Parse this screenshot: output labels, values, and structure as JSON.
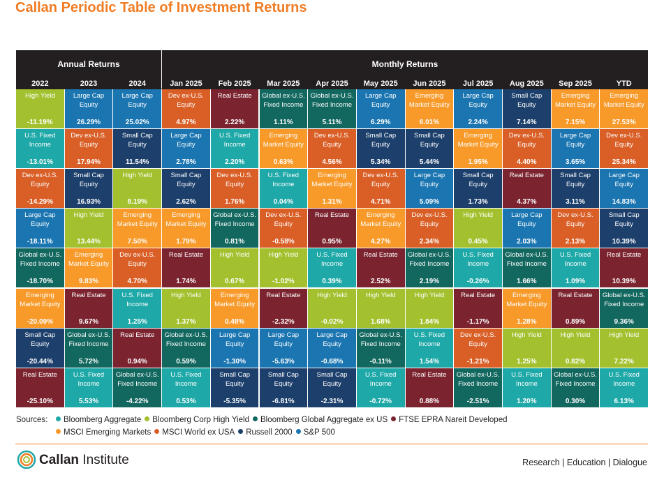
{
  "title": "Callan Periodic Table of Investment Returns",
  "header": {
    "annual": "Annual Returns",
    "monthly": "Monthly Returns"
  },
  "colors": {
    "aggregate": "#1fa8a8",
    "high_yield": "#a3c12e",
    "global_agg": "#12675f",
    "real_estate": "#7b2430",
    "em": "#f79a2a",
    "dev": "#d95f27",
    "small_cap": "#1c3f6b",
    "large_cap": "#1a75b1"
  },
  "chart_data": {
    "type": "table",
    "columns": [
      "2022",
      "2023",
      "2024",
      "Jan 2025",
      "Feb 2025",
      "Mar 2025",
      "Apr 2025",
      "May 2025",
      "Jun 2025",
      "Jul 2025",
      "Aug 2025",
      "Sep 2025",
      "YTD"
    ],
    "cells": [
      [
        [
          "High Yield",
          "-11.19%",
          "high_yield"
        ],
        [
          "Large Cap Equity",
          "26.29%",
          "large_cap"
        ],
        [
          "Large Cap Equity",
          "25.02%",
          "large_cap"
        ],
        [
          "Dev ex-U.S. Equity",
          "4.97%",
          "dev"
        ],
        [
          "Real Estate",
          "2.22%",
          "real_estate"
        ],
        [
          "Global ex-U.S. Fixed Income",
          "1.11%",
          "global_agg"
        ],
        [
          "Global ex-U.S. Fixed Income",
          "5.11%",
          "global_agg"
        ],
        [
          "Large Cap Equity",
          "6.29%",
          "large_cap"
        ],
        [
          "Emerging Market Equity",
          "6.01%",
          "em"
        ],
        [
          "Large Cap Equity",
          "2.24%",
          "large_cap"
        ],
        [
          "Small Cap Equity",
          "7.14%",
          "small_cap"
        ],
        [
          "Emerging Market Equity",
          "7.15%",
          "em"
        ],
        [
          "Emerging Market Equity",
          "27.53%",
          "em"
        ]
      ],
      [
        [
          "U.S. Fixed Income",
          "-13.01%",
          "aggregate"
        ],
        [
          "Dev ex-U.S. Equity",
          "17.94%",
          "dev"
        ],
        [
          "Small Cap Equity",
          "11.54%",
          "small_cap"
        ],
        [
          "Large Cap Equity",
          "2.78%",
          "large_cap"
        ],
        [
          "U.S. Fixed Income",
          "2.20%",
          "aggregate"
        ],
        [
          "Emerging Market Equity",
          "0.63%",
          "em"
        ],
        [
          "Dev ex-U.S. Equity",
          "4.56%",
          "dev"
        ],
        [
          "Small Cap Equity",
          "5.34%",
          "small_cap"
        ],
        [
          "Small Cap Equity",
          "5.44%",
          "small_cap"
        ],
        [
          "Emerging Market Equity",
          "1.95%",
          "em"
        ],
        [
          "Dev ex-U.S. Equity",
          "4.40%",
          "dev"
        ],
        [
          "Large Cap Equity",
          "3.65%",
          "large_cap"
        ],
        [
          "Dev ex-U.S. Equity",
          "25.34%",
          "dev"
        ]
      ],
      [
        [
          "Dev ex-U.S. Equity",
          "-14.29%",
          "dev"
        ],
        [
          "Small Cap Equity",
          "16.93%",
          "small_cap"
        ],
        [
          "High Yield",
          "8.19%",
          "high_yield"
        ],
        [
          "Small Cap Equity",
          "2.62%",
          "small_cap"
        ],
        [
          "Dev ex-U.S. Equity",
          "1.76%",
          "dev"
        ],
        [
          "U.S. Fixed Income",
          "0.04%",
          "aggregate"
        ],
        [
          "Emerging Market Equity",
          "1.31%",
          "em"
        ],
        [
          "Dev ex-U.S. Equity",
          "4.71%",
          "dev"
        ],
        [
          "Large Cap Equity",
          "5.09%",
          "large_cap"
        ],
        [
          "Small Cap Equity",
          "1.73%",
          "small_cap"
        ],
        [
          "Real Estate",
          "4.37%",
          "real_estate"
        ],
        [
          "Small Cap Equity",
          "3.11%",
          "small_cap"
        ],
        [
          "Large Cap Equity",
          "14.83%",
          "large_cap"
        ]
      ],
      [
        [
          "Large Cap Equity",
          "-18.11%",
          "large_cap"
        ],
        [
          "High Yield",
          "13.44%",
          "high_yield"
        ],
        [
          "Emerging Market Equity",
          "7.50%",
          "em"
        ],
        [
          "Emerging Market Equity",
          "1.79%",
          "em"
        ],
        [
          "Global ex-U.S. Fixed Income",
          "0.81%",
          "global_agg"
        ],
        [
          "Dev ex-U.S. Equity",
          "-0.58%",
          "dev"
        ],
        [
          "Real Estate",
          "0.95%",
          "real_estate"
        ],
        [
          "Emerging Market Equity",
          "4.27%",
          "em"
        ],
        [
          "Dev ex-U.S. Equity",
          "2.34%",
          "dev"
        ],
        [
          "High Yield",
          "0.45%",
          "high_yield"
        ],
        [
          "Large Cap Equity",
          "2.03%",
          "large_cap"
        ],
        [
          "Dev ex-U.S. Equity",
          "2.13%",
          "dev"
        ],
        [
          "Small Cap Equity",
          "10.39%",
          "small_cap"
        ]
      ],
      [
        [
          "Global ex-U.S. Fixed Income",
          "-18.70%",
          "global_agg"
        ],
        [
          "Emerging Market Equity",
          "9.83%",
          "em"
        ],
        [
          "Dev ex-U.S. Equity",
          "4.70%",
          "dev"
        ],
        [
          "Real Estate",
          "1.74%",
          "real_estate"
        ],
        [
          "High Yield",
          "0.67%",
          "high_yield"
        ],
        [
          "High Yield",
          "-1.02%",
          "high_yield"
        ],
        [
          "U.S. Fixed Income",
          "0.39%",
          "aggregate"
        ],
        [
          "Real Estate",
          "2.52%",
          "real_estate"
        ],
        [
          "Global ex-U.S. Fixed Income",
          "2.19%",
          "global_agg"
        ],
        [
          "U.S. Fixed Income",
          "-0.26%",
          "aggregate"
        ],
        [
          "Global ex-U.S. Fixed Income",
          "1.66%",
          "global_agg"
        ],
        [
          "U.S. Fixed Income",
          "1.09%",
          "aggregate"
        ],
        [
          "Real Estate",
          "10.39%",
          "real_estate"
        ]
      ],
      [
        [
          "Emerging Market Equity",
          "-20.09%",
          "em"
        ],
        [
          "Real Estate",
          "9.67%",
          "real_estate"
        ],
        [
          "U.S. Fixed Income",
          "1.25%",
          "aggregate"
        ],
        [
          "High Yield",
          "1.37%",
          "high_yield"
        ],
        [
          "Emerging Market Equity",
          "0.48%",
          "em"
        ],
        [
          "Real Estate",
          "-2.32%",
          "real_estate"
        ],
        [
          "High Yield",
          "-0.02%",
          "high_yield"
        ],
        [
          "High Yield",
          "1.68%",
          "high_yield"
        ],
        [
          "High Yield",
          "1.84%",
          "high_yield"
        ],
        [
          "Real Estate",
          "-1.17%",
          "real_estate"
        ],
        [
          "Emerging Market Equity",
          "1.28%",
          "em"
        ],
        [
          "Real Estate",
          "0.89%",
          "real_estate"
        ],
        [
          "Global ex-U.S. Fixed Income",
          "9.36%",
          "global_agg"
        ]
      ],
      [
        [
          "Small Cap Equity",
          "-20.44%",
          "small_cap"
        ],
        [
          "Global ex-U.S. Fixed Income",
          "5.72%",
          "global_agg"
        ],
        [
          "Real Estate",
          "0.94%",
          "real_estate"
        ],
        [
          "Global ex-U.S. Fixed Income",
          "0.59%",
          "global_agg"
        ],
        [
          "Large Cap Equity",
          "-1.30%",
          "large_cap"
        ],
        [
          "Large Cap Equity",
          "-5.63%",
          "large_cap"
        ],
        [
          "Large Cap Equity",
          "-0.68%",
          "large_cap"
        ],
        [
          "Global ex-U.S. Fixed Income",
          "-0.11%",
          "global_agg"
        ],
        [
          "U.S. Fixed Income",
          "1.54%",
          "aggregate"
        ],
        [
          "Dev ex-U.S. Equity",
          "-1.21%",
          "dev"
        ],
        [
          "High Yield",
          "1.25%",
          "high_yield"
        ],
        [
          "High Yield",
          "0.82%",
          "high_yield"
        ],
        [
          "High Yield",
          "7.22%",
          "high_yield"
        ]
      ],
      [
        [
          "Real Estate",
          "-25.10%",
          "real_estate"
        ],
        [
          "U.S. Fixed Income",
          "5.53%",
          "aggregate"
        ],
        [
          "Global ex-U.S. Fixed Income",
          "-4.22%",
          "global_agg"
        ],
        [
          "U.S. Fixed Income",
          "0.53%",
          "aggregate"
        ],
        [
          "Small Cap Equity",
          "-5.35%",
          "small_cap"
        ],
        [
          "Small Cap Equity",
          "-6.81%",
          "small_cap"
        ],
        [
          "Small Cap Equity",
          "-2.31%",
          "small_cap"
        ],
        [
          "U.S. Fixed Income",
          "-0.72%",
          "aggregate"
        ],
        [
          "Real Estate",
          "0.88%",
          "real_estate"
        ],
        [
          "Global ex-U.S. Fixed Income",
          "-2.51%",
          "global_agg"
        ],
        [
          "U.S. Fixed Income",
          "1.20%",
          "aggregate"
        ],
        [
          "Global ex-U.S. Fixed Income",
          "0.30%",
          "global_agg"
        ],
        [
          "U.S. Fixed Income",
          "6.13%",
          "aggregate"
        ]
      ]
    ]
  },
  "sources": {
    "label": "Sources:",
    "row1": [
      {
        "text": "Bloomberg Aggregate",
        "key": "aggregate"
      },
      {
        "text": "Bloomberg Corp High Yield",
        "key": "high_yield"
      },
      {
        "text": "Bloomberg Global Aggregate ex US",
        "key": "global_agg"
      },
      {
        "text": "FTSE EPRA Nareit Developed",
        "key": "real_estate"
      }
    ],
    "row2": [
      {
        "text": "MSCI Emerging Markets",
        "key": "em"
      },
      {
        "text": "MSCI World ex USA",
        "key": "dev"
      },
      {
        "text": "Russell 2000",
        "key": "small_cap"
      },
      {
        "text": "S&P 500",
        "key": "large_cap"
      }
    ]
  },
  "footer": {
    "logo_bold": "Callan",
    "logo_rest": " Institute",
    "tagline": "Research | Education | Dialogue"
  }
}
